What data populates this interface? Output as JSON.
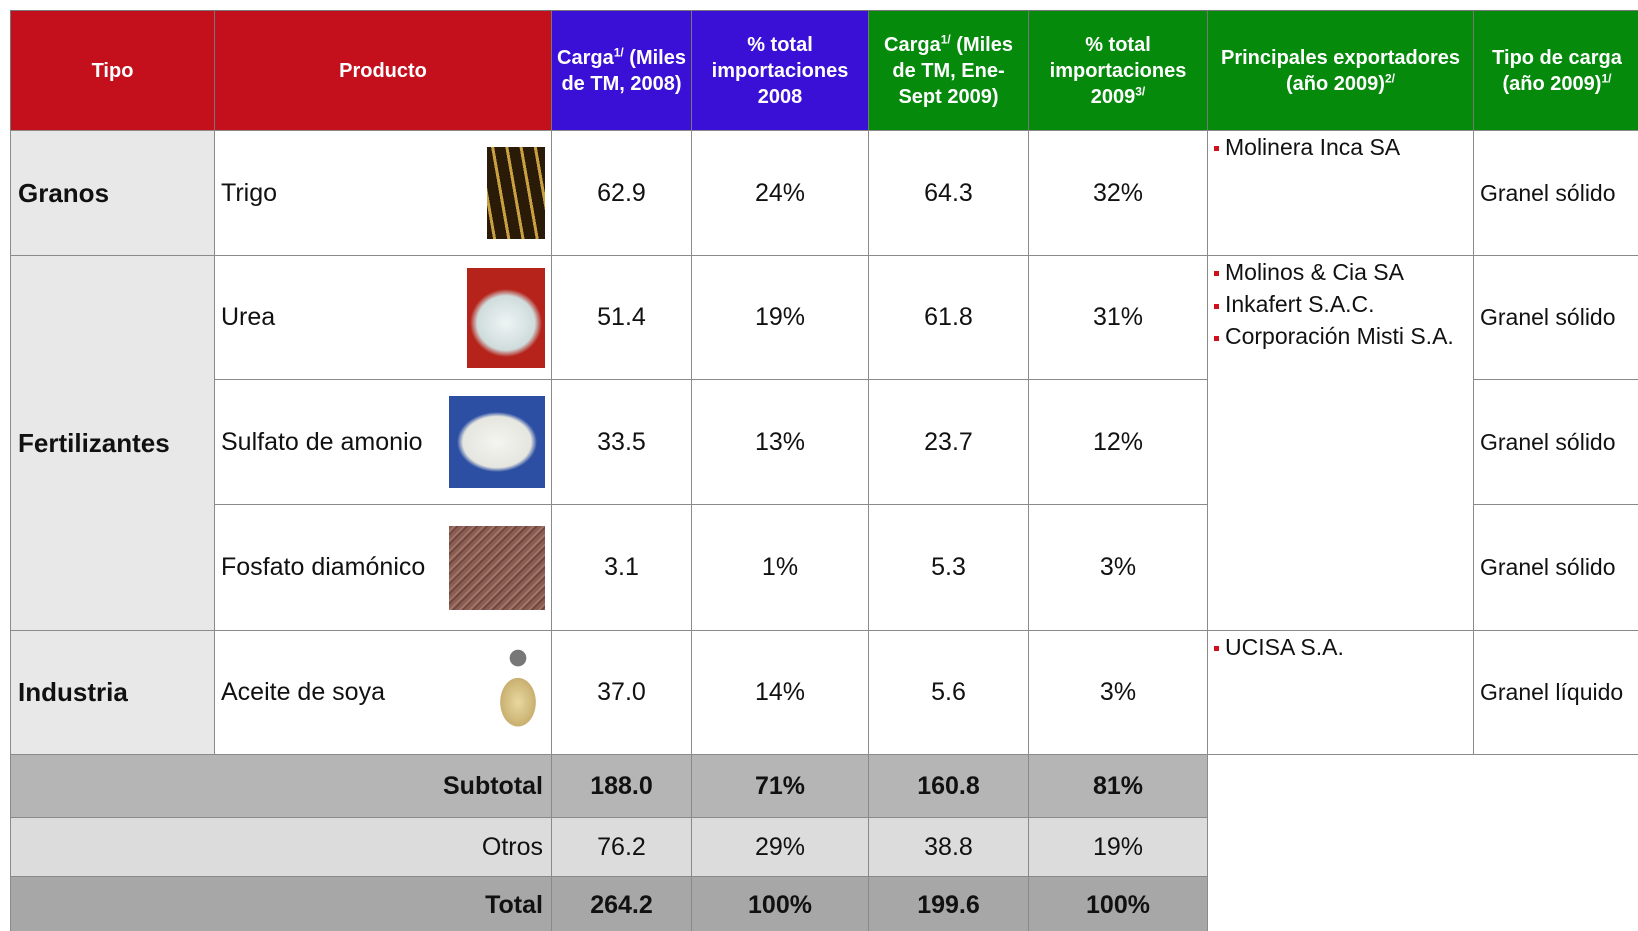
{
  "header": {
    "columns": [
      {
        "label": "Tipo"
      },
      {
        "label": "Producto"
      },
      {
        "label": "Carga",
        "sup": "1/",
        "after": "(Miles de TM, 2008)"
      },
      {
        "label": "% total importaciones 2008"
      },
      {
        "label": "Carga",
        "sup": "1/",
        "after": "(Miles de TM, Ene-Sept 2009)"
      },
      {
        "label": "% total importaciones 2009",
        "sup": "3/"
      },
      {
        "label": "Principales exportadores (año 2009)",
        "sup": "2/"
      },
      {
        "label": "Tipo de carga (año 2009)",
        "sup": "1/"
      }
    ]
  },
  "groups": [
    {
      "tipo": "Granos",
      "exporters": [
        "Molinera Inca SA"
      ],
      "rows": [
        {
          "producto": "Trigo",
          "cells": [
            "62.9",
            "24%",
            "64.3",
            "32%"
          ],
          "carga": "Granel sólido"
        }
      ]
    },
    {
      "tipo": "Fertilizantes",
      "exporters": [
        "Molinos & Cia SA",
        "Inkafert S.A.C.",
        "Corporación Misti S.A."
      ],
      "rows": [
        {
          "producto": "Urea",
          "cells": [
            "51.4",
            "19%",
            "61.8",
            "31%"
          ],
          "carga": "Granel sólido"
        },
        {
          "producto": "Sulfato de amonio",
          "cells": [
            "33.5",
            "13%",
            "23.7",
            "12%"
          ],
          "carga": "Granel sólido"
        },
        {
          "producto": "Fosfato diamónico",
          "cells": [
            "3.1",
            "1%",
            "5.3",
            "3%"
          ],
          "carga": "Granel sólido"
        }
      ]
    },
    {
      "tipo": "Industria",
      "exporters": [
        "UCISA S.A."
      ],
      "rows": [
        {
          "producto": "Aceite de soya",
          "cells": [
            "37.0",
            "14%",
            "5.6",
            "3%"
          ],
          "carga": "Granel líquido"
        }
      ]
    }
  ],
  "summary": [
    {
      "label": "Subtotal",
      "cells": [
        "188.0",
        "71%",
        "160.8",
        "81%"
      ]
    },
    {
      "label": "Otros",
      "cells": [
        "76.2",
        "29%",
        "38.8",
        "19%"
      ]
    },
    {
      "label": "Total",
      "cells": [
        "264.2",
        "100%",
        "199.6",
        "100%"
      ]
    }
  ]
}
